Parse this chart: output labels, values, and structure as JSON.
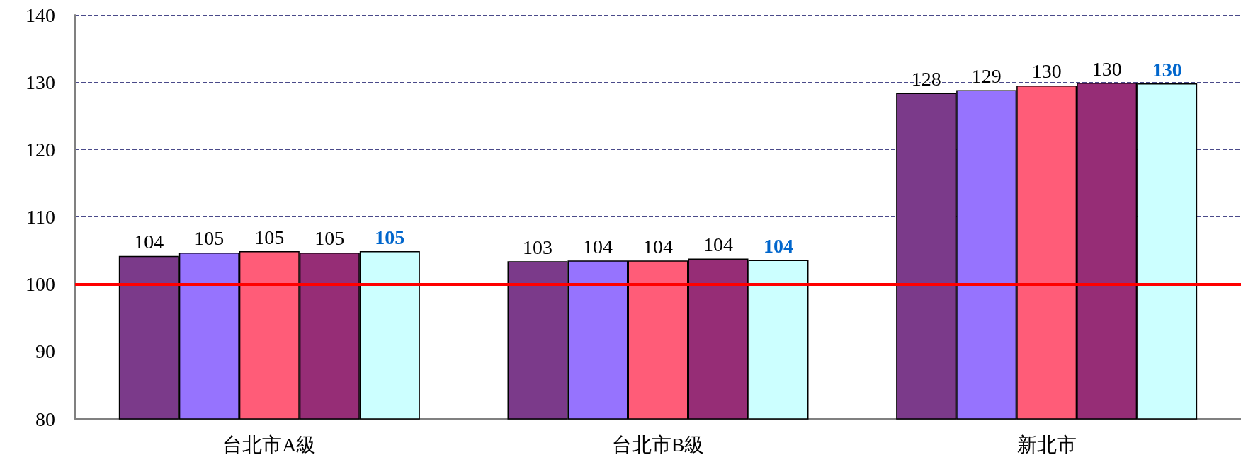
{
  "chart_data": {
    "type": "bar",
    "categories": [
      "台北市A級",
      "台北市B級",
      "新北市"
    ],
    "series": [
      {
        "color": "#7b3a8a",
        "values": [
          104.2,
          103.4,
          128.4
        ],
        "value_labels": [
          "104",
          "103",
          "128"
        ]
      },
      {
        "color": "#9673fe",
        "values": [
          104.7,
          103.5,
          128.8
        ],
        "value_labels": [
          "105",
          "104",
          "129"
        ]
      },
      {
        "color": "#ff5c78",
        "values": [
          104.9,
          103.5,
          129.5
        ],
        "value_labels": [
          "105",
          "104",
          "130"
        ]
      },
      {
        "color": "#962d76",
        "values": [
          104.7,
          103.8,
          129.9
        ],
        "value_labels": [
          "105",
          "104",
          "130"
        ]
      },
      {
        "color": "#ccffff",
        "values": [
          104.9,
          103.6,
          129.8
        ],
        "value_labels": [
          "105",
          "104",
          "130"
        ]
      }
    ],
    "ylim": [
      80,
      140
    ],
    "yticks": [
      80,
      90,
      100,
      110,
      120,
      130,
      140
    ],
    "grid": "y",
    "ref_lines": [
      {
        "axis": "y",
        "value": 100,
        "color": "#ff0000",
        "line_style": "solid"
      }
    ]
  }
}
